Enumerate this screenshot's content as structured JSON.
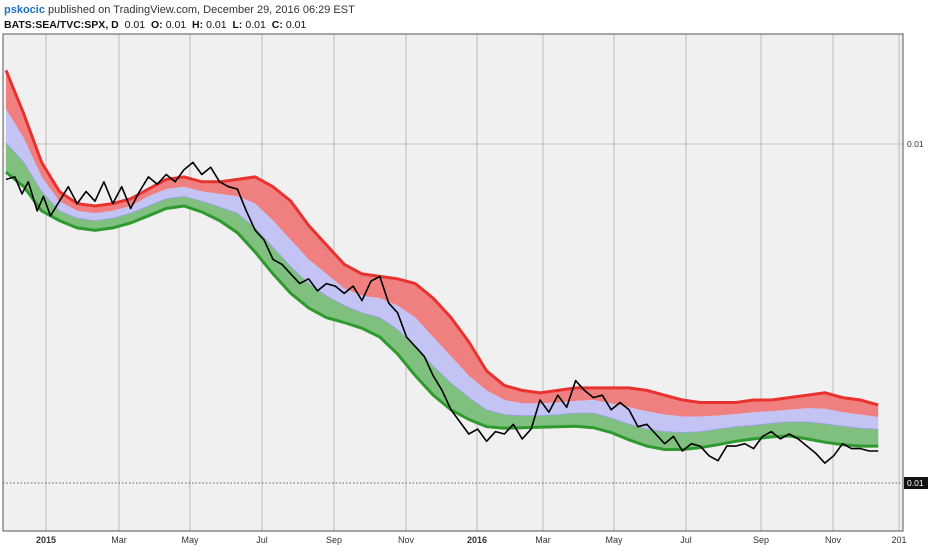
{
  "header": {
    "author": "pskocic",
    "published_text": "published on TradingView.com, December 29, 2016 06:29 EST",
    "symbol": "BATS:SEA/TVC:SPX, D",
    "last": "0.01",
    "o_label": "O:",
    "o_value": "0.01",
    "h_label": "H:",
    "h_value": "0.01",
    "l_label": "L:",
    "l_value": "0.01",
    "c_label": "C:",
    "c_value": "0.01"
  },
  "colors": {
    "upper_band": "#f08080",
    "upper_line": "#e8322e",
    "mid_band": "#c3c3f4",
    "lower_band": "#7fc07f",
    "lower_line": "#2e9a2e",
    "price_line": "#000000",
    "plot_bg": "#f0f0f0",
    "grid": "#9a9a9a"
  },
  "chart_data": {
    "type": "line",
    "title": "",
    "x_ticks": [
      "2015",
      "Mar",
      "May",
      "Jul",
      "Sep",
      "Nov",
      "2016",
      "Mar",
      "May",
      "Jul",
      "Sep",
      "Nov",
      "201"
    ],
    "y_ticks": [
      "0.01"
    ],
    "current_value_label": "0.01",
    "x_index_range": [
      0,
      100
    ],
    "grid": true,
    "series": [
      {
        "key": "upper",
        "values": [
          [
            0,
            95.0
          ],
          [
            2,
            86
          ],
          [
            4,
            76
          ],
          [
            6,
            70
          ],
          [
            8,
            67.5
          ],
          [
            10,
            67
          ],
          [
            12,
            67.5
          ],
          [
            14,
            68.5
          ],
          [
            16,
            70.5
          ],
          [
            18,
            72.5
          ],
          [
            20,
            73
          ],
          [
            22,
            72
          ],
          [
            24,
            72
          ],
          [
            26,
            72.5
          ],
          [
            28,
            73
          ],
          [
            30,
            71
          ],
          [
            32,
            68
          ],
          [
            34,
            63
          ],
          [
            36,
            59
          ],
          [
            38,
            55
          ],
          [
            40,
            53
          ],
          [
            42,
            52.5
          ],
          [
            44,
            52
          ],
          [
            46,
            51
          ],
          [
            48,
            48
          ],
          [
            50,
            44
          ],
          [
            52,
            39
          ],
          [
            54,
            33
          ],
          [
            56,
            30
          ],
          [
            58,
            29
          ],
          [
            60,
            28.5
          ],
          [
            62,
            29
          ],
          [
            64,
            29.5
          ],
          [
            66,
            29.5
          ],
          [
            68,
            29.5
          ],
          [
            70,
            29.5
          ],
          [
            72,
            29.0
          ],
          [
            74,
            28
          ],
          [
            76,
            27
          ],
          [
            78,
            26.5
          ],
          [
            80,
            26.5
          ],
          [
            82,
            26.5
          ],
          [
            84,
            27
          ],
          [
            86,
            27
          ],
          [
            88,
            27.5
          ],
          [
            90,
            28
          ],
          [
            92,
            28.5
          ],
          [
            94,
            27.5
          ],
          [
            96,
            27
          ],
          [
            98,
            26
          ]
        ]
      },
      {
        "key": "upper_mid",
        "values": [
          [
            0,
            87
          ],
          [
            2,
            81
          ],
          [
            4,
            73
          ],
          [
            6,
            68
          ],
          [
            8,
            66
          ],
          [
            10,
            65.5
          ],
          [
            12,
            66
          ],
          [
            14,
            67
          ],
          [
            16,
            69
          ],
          [
            18,
            70.5
          ],
          [
            20,
            71
          ],
          [
            22,
            70
          ],
          [
            24,
            69.5
          ],
          [
            26,
            69
          ],
          [
            28,
            67.5
          ],
          [
            30,
            64
          ],
          [
            32,
            60
          ],
          [
            34,
            56
          ],
          [
            36,
            53
          ],
          [
            38,
            50
          ],
          [
            40,
            48.5
          ],
          [
            42,
            48
          ],
          [
            44,
            46.5
          ],
          [
            46,
            44
          ],
          [
            48,
            40
          ],
          [
            50,
            36
          ],
          [
            52,
            32
          ],
          [
            54,
            29
          ],
          [
            56,
            27
          ],
          [
            58,
            26.3
          ],
          [
            60,
            26.3
          ],
          [
            62,
            26.5
          ],
          [
            64,
            26.8
          ],
          [
            66,
            27
          ],
          [
            68,
            26.3
          ],
          [
            70,
            25.5
          ],
          [
            72,
            24.7
          ],
          [
            74,
            24
          ],
          [
            76,
            23.6
          ],
          [
            78,
            23.6
          ],
          [
            80,
            23.8
          ],
          [
            82,
            24.1
          ],
          [
            84,
            24.5
          ],
          [
            86,
            24.7
          ],
          [
            88,
            25
          ],
          [
            90,
            25.3
          ],
          [
            92,
            25.2
          ],
          [
            94,
            24.5
          ],
          [
            96,
            24
          ],
          [
            98,
            23.5
          ]
        ]
      },
      {
        "key": "mid_lower",
        "values": [
          [
            0,
            80
          ],
          [
            2,
            76
          ],
          [
            4,
            70
          ],
          [
            6,
            66
          ],
          [
            8,
            64.5
          ],
          [
            10,
            64
          ],
          [
            12,
            64.5
          ],
          [
            14,
            65.5
          ],
          [
            16,
            67
          ],
          [
            18,
            68.5
          ],
          [
            20,
            69
          ],
          [
            22,
            68
          ],
          [
            24,
            66.8
          ],
          [
            26,
            65.5
          ],
          [
            28,
            62.5
          ],
          [
            30,
            58.5
          ],
          [
            32,
            54.5
          ],
          [
            34,
            51
          ],
          [
            36,
            48.5
          ],
          [
            38,
            46.5
          ],
          [
            40,
            45
          ],
          [
            42,
            44
          ],
          [
            44,
            41.5
          ],
          [
            46,
            38
          ],
          [
            48,
            34
          ],
          [
            50,
            30.5
          ],
          [
            52,
            27.5
          ],
          [
            54,
            25
          ],
          [
            56,
            24
          ],
          [
            58,
            23.8
          ],
          [
            60,
            23.8
          ],
          [
            62,
            24
          ],
          [
            64,
            24.3
          ],
          [
            66,
            24.3
          ],
          [
            68,
            23.3
          ],
          [
            70,
            22
          ],
          [
            72,
            21
          ],
          [
            74,
            20.5
          ],
          [
            76,
            20.3
          ],
          [
            78,
            20.5
          ],
          [
            80,
            21
          ],
          [
            82,
            21.5
          ],
          [
            84,
            21.8
          ],
          [
            86,
            22.2
          ],
          [
            88,
            22.5
          ],
          [
            90,
            22.5
          ],
          [
            92,
            22.1
          ],
          [
            94,
            21.6
          ],
          [
            96,
            21.2
          ],
          [
            98,
            21
          ]
        ]
      },
      {
        "key": "lower",
        "values": [
          [
            0,
            74
          ],
          [
            2,
            71
          ],
          [
            4,
            66
          ],
          [
            6,
            64
          ],
          [
            8,
            62.5
          ],
          [
            10,
            62
          ],
          [
            12,
            62.5
          ],
          [
            14,
            63.5
          ],
          [
            16,
            65
          ],
          [
            18,
            66.5
          ],
          [
            20,
            67
          ],
          [
            22,
            65.8
          ],
          [
            24,
            64
          ],
          [
            26,
            61.5
          ],
          [
            28,
            57.5
          ],
          [
            30,
            53
          ],
          [
            32,
            49
          ],
          [
            34,
            46
          ],
          [
            34.5,
            45.5
          ],
          [
            36,
            44
          ],
          [
            38,
            43
          ],
          [
            40,
            41.8
          ],
          [
            42,
            40
          ],
          [
            44,
            36.5
          ],
          [
            46,
            32
          ],
          [
            48,
            28
          ],
          [
            50,
            25
          ],
          [
            52,
            23
          ],
          [
            54,
            21.5
          ],
          [
            56,
            21.2
          ],
          [
            58,
            21.3
          ],
          [
            60,
            21.4
          ],
          [
            62,
            21.5
          ],
          [
            64,
            21.6
          ],
          [
            66,
            21.3
          ],
          [
            68,
            20.3
          ],
          [
            70,
            18.8
          ],
          [
            72,
            17.5
          ],
          [
            74,
            16.8
          ],
          [
            76,
            16.8
          ],
          [
            78,
            17.2
          ],
          [
            80,
            17.8
          ],
          [
            82,
            18.5
          ],
          [
            84,
            19
          ],
          [
            86,
            19.4
          ],
          [
            88,
            19.6
          ],
          [
            90,
            19.0
          ],
          [
            92,
            18.3
          ],
          [
            94,
            17.8
          ],
          [
            96,
            17.5
          ],
          [
            98,
            17.5
          ]
        ]
      },
      {
        "key": "price",
        "values": [
          [
            0,
            72.5
          ],
          [
            1,
            73
          ],
          [
            1.8,
            69.5
          ],
          [
            2.5,
            72
          ],
          [
            3.5,
            66
          ],
          [
            4.2,
            69
          ],
          [
            5,
            65
          ],
          [
            6,
            68
          ],
          [
            7,
            71
          ],
          [
            8,
            67.5
          ],
          [
            9,
            70
          ],
          [
            10,
            68
          ],
          [
            11,
            72
          ],
          [
            12,
            67.5
          ],
          [
            13,
            71
          ],
          [
            14,
            66.5
          ],
          [
            15,
            70
          ],
          [
            16,
            73
          ],
          [
            17,
            71.5
          ],
          [
            18,
            73.5
          ],
          [
            19,
            72
          ],
          [
            20,
            74.5
          ],
          [
            21,
            76
          ],
          [
            22,
            73.5
          ],
          [
            23,
            75
          ],
          [
            24,
            72
          ],
          [
            25,
            71
          ],
          [
            26,
            70.5
          ],
          [
            27,
            66
          ],
          [
            28,
            62
          ],
          [
            29,
            60
          ],
          [
            30,
            56
          ],
          [
            31,
            55
          ],
          [
            32,
            53
          ],
          [
            33,
            51
          ],
          [
            34,
            52
          ],
          [
            35,
            49.5
          ],
          [
            36,
            51
          ],
          [
            37,
            50.5
          ],
          [
            38,
            49
          ],
          [
            39,
            50.5
          ],
          [
            40,
            47.5
          ],
          [
            41,
            51.5
          ],
          [
            42,
            52.5
          ],
          [
            43,
            47
          ],
          [
            44,
            45
          ],
          [
            45,
            40
          ],
          [
            46,
            38
          ],
          [
            47,
            36
          ],
          [
            48,
            32
          ],
          [
            49,
            29
          ],
          [
            50,
            25
          ],
          [
            51,
            22.5
          ],
          [
            52,
            20
          ],
          [
            53,
            21
          ],
          [
            54,
            18.5
          ],
          [
            55,
            20.5
          ],
          [
            56,
            20
          ],
          [
            57,
            22
          ],
          [
            58,
            19
          ],
          [
            59,
            21
          ],
          [
            60,
            27
          ],
          [
            61,
            24.5
          ],
          [
            62,
            28
          ],
          [
            63,
            25.5
          ],
          [
            64,
            31
          ],
          [
            65,
            29
          ],
          [
            66,
            27.5
          ],
          [
            67,
            28
          ],
          [
            68,
            25
          ],
          [
            69,
            26.5
          ],
          [
            70,
            25
          ],
          [
            71,
            21.5
          ],
          [
            72,
            22
          ],
          [
            73,
            20
          ],
          [
            74,
            18
          ],
          [
            75,
            19.5
          ],
          [
            76,
            16.5
          ],
          [
            77,
            18
          ],
          [
            78,
            17.5
          ],
          [
            79,
            15.5
          ],
          [
            80,
            14.5
          ],
          [
            81,
            17.5
          ],
          [
            82,
            17.5
          ],
          [
            83,
            18
          ],
          [
            84,
            17
          ],
          [
            85,
            19.5
          ],
          [
            86,
            20.5
          ],
          [
            87,
            19
          ],
          [
            88,
            20
          ],
          [
            89,
            19
          ],
          [
            90,
            17.5
          ],
          [
            91,
            16
          ],
          [
            92,
            14
          ],
          [
            93,
            15.5
          ],
          [
            94,
            18
          ],
          [
            95,
            17
          ],
          [
            96,
            17
          ],
          [
            97,
            16.5
          ],
          [
            98,
            16.5
          ]
        ]
      }
    ]
  }
}
